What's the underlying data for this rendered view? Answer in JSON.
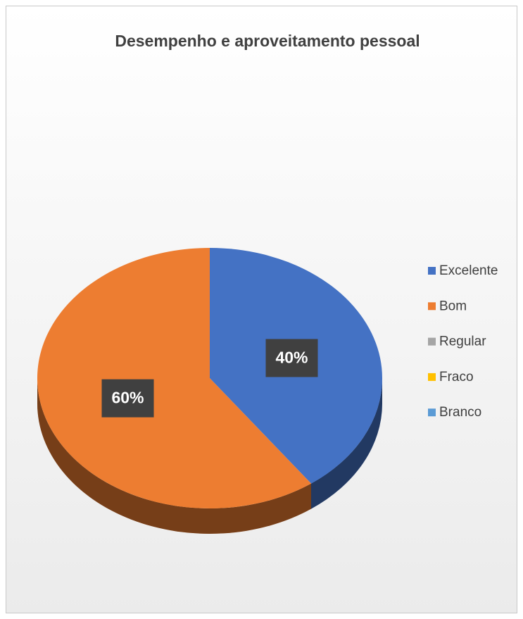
{
  "chart_data": {
    "type": "pie",
    "title": "Desempenho e aproveitamento pessoal",
    "categories": [
      "Excelente",
      "Bom",
      "Regular",
      "Fraco",
      "Branco"
    ],
    "values": [
      40,
      60,
      0,
      0,
      0
    ],
    "value_labels": [
      "40%",
      "60%",
      null,
      null,
      null
    ],
    "colors": [
      "#4472c4",
      "#ed7d31",
      "#a5a5a5",
      "#ffc000",
      "#5b9bd5"
    ],
    "legend": "right"
  }
}
